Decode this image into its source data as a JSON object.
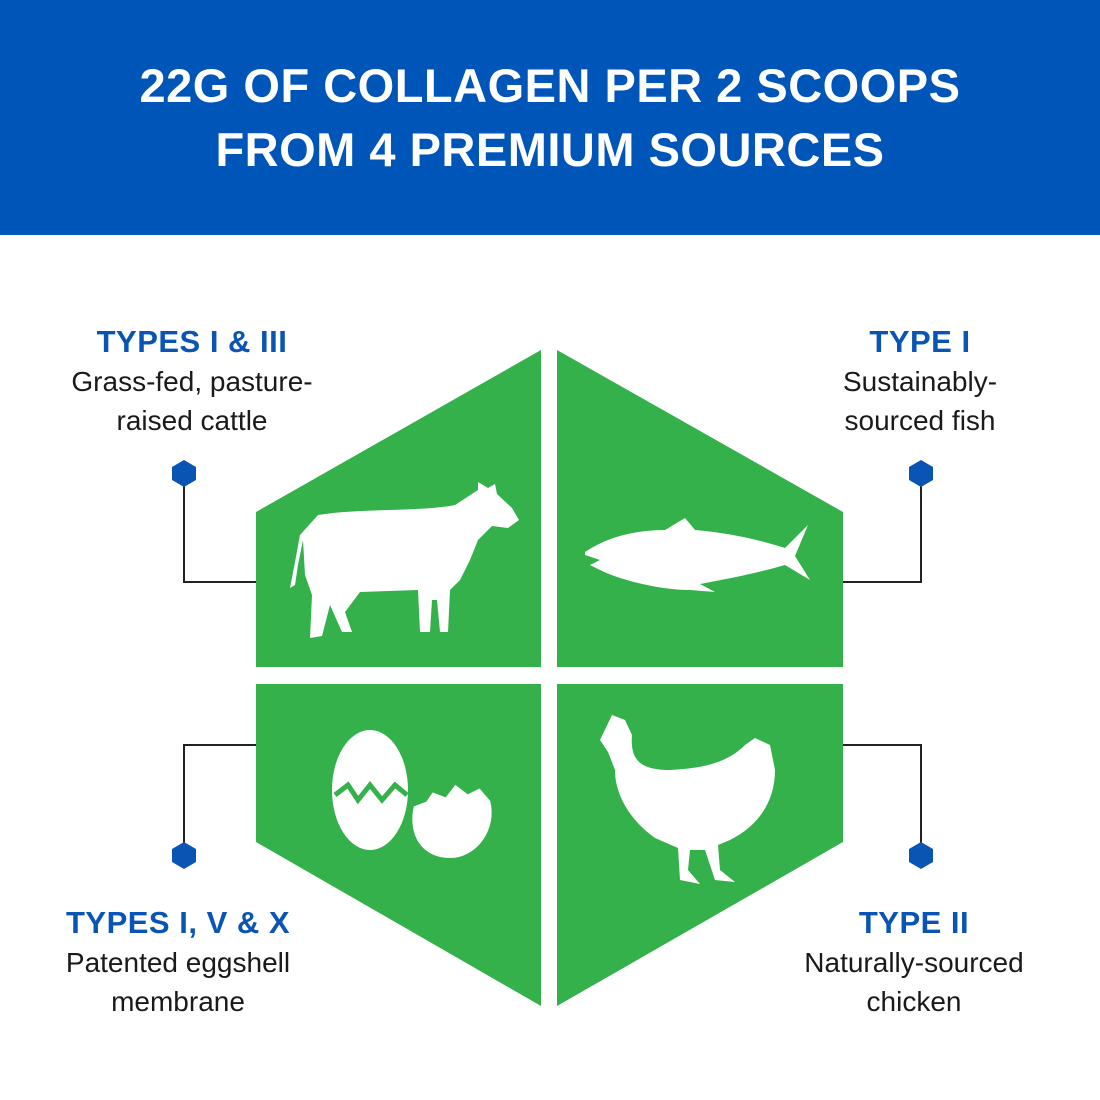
{
  "header": {
    "line1": "22G OF COLLAGEN PER 2 SCOOPS",
    "line2": "FROM 4 PREMIUM SOURCES"
  },
  "colors": {
    "brand_blue": "#0055b8",
    "green": "#34b14b",
    "connector": "#222222"
  },
  "sources": [
    {
      "type": "TYPES I & III",
      "desc1": "Grass-fed, pasture-",
      "desc2": "raised cattle",
      "icon": "cow-icon"
    },
    {
      "type": "TYPE I",
      "desc1": "Sustainably-",
      "desc2": "sourced fish",
      "icon": "fish-icon"
    },
    {
      "type": "TYPES I, V & X",
      "desc1": "Patented eggshell",
      "desc2": "membrane",
      "icon": "eggshell-icon"
    },
    {
      "type": "TYPE II",
      "desc1": "Naturally-sourced",
      "desc2": "chicken",
      "icon": "chicken-icon"
    }
  ]
}
